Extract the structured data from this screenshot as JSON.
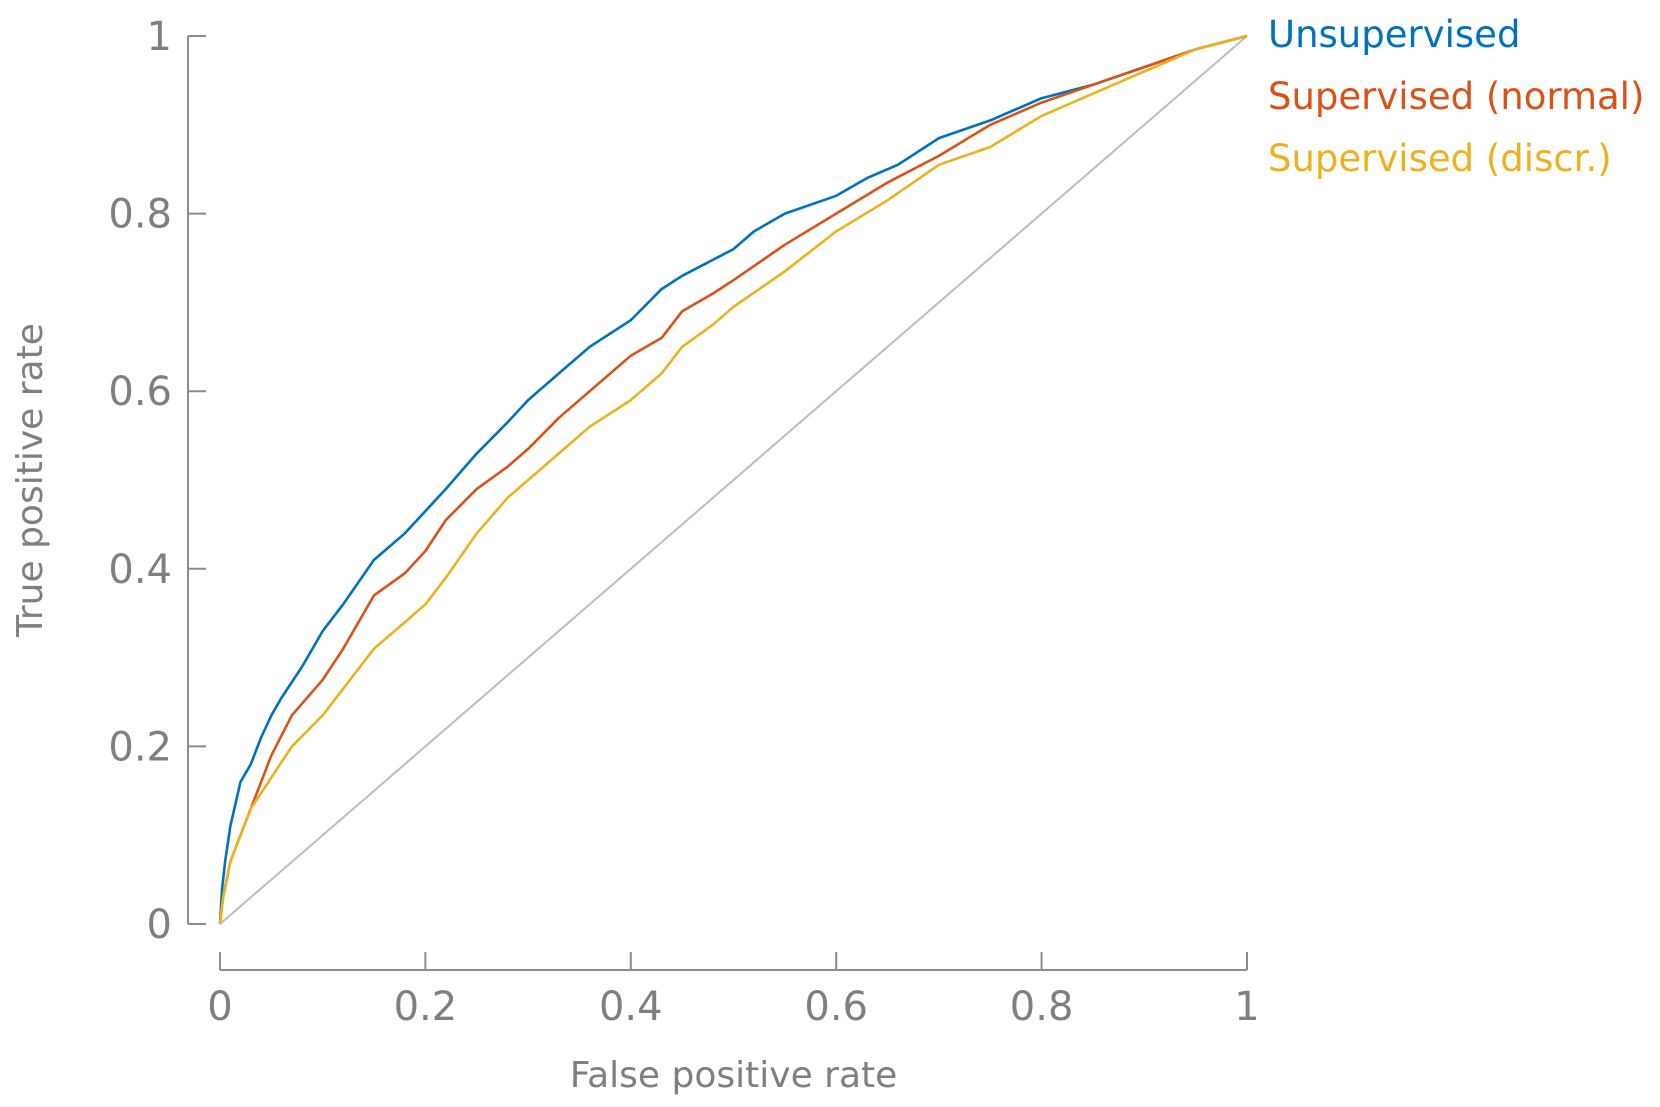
{
  "chart_data": {
    "type": "line",
    "title": "",
    "xlabel": "False positive rate",
    "ylabel": "True positive rate",
    "xlim": [
      0,
      1
    ],
    "ylim": [
      0,
      1
    ],
    "xticks": [
      "0",
      "0.2",
      "0.4",
      "0.6",
      "0.8",
      "1"
    ],
    "yticks": [
      "0",
      "0.2",
      "0.4",
      "0.6",
      "0.8",
      "1"
    ],
    "grid": false,
    "legend_position": "outside-top-right",
    "reference_line": {
      "from": [
        0,
        0
      ],
      "to": [
        1,
        1
      ],
      "color": "#bdbdbd"
    },
    "series": [
      {
        "name": "Unsupervised",
        "color": "#0072BD",
        "x": [
          0,
          0.002,
          0.005,
          0.01,
          0.02,
          0.03,
          0.04,
          0.05,
          0.06,
          0.08,
          0.1,
          0.12,
          0.15,
          0.18,
          0.2,
          0.22,
          0.25,
          0.28,
          0.3,
          0.33,
          0.36,
          0.4,
          0.43,
          0.45,
          0.5,
          0.52,
          0.55,
          0.6,
          0.63,
          0.66,
          0.7,
          0.75,
          0.8,
          0.85,
          0.9,
          0.95,
          1.0
        ],
        "y": [
          0,
          0.04,
          0.07,
          0.11,
          0.16,
          0.18,
          0.21,
          0.235,
          0.255,
          0.29,
          0.33,
          0.36,
          0.41,
          0.44,
          0.465,
          0.49,
          0.53,
          0.565,
          0.59,
          0.62,
          0.65,
          0.68,
          0.715,
          0.73,
          0.76,
          0.78,
          0.8,
          0.82,
          0.84,
          0.855,
          0.885,
          0.905,
          0.93,
          0.945,
          0.965,
          0.985,
          1.0
        ]
      },
      {
        "name": "Supervised (normal)",
        "color": "#D95319",
        "x": [
          0,
          0.003,
          0.01,
          0.02,
          0.03,
          0.05,
          0.07,
          0.1,
          0.12,
          0.15,
          0.18,
          0.2,
          0.22,
          0.25,
          0.28,
          0.3,
          0.33,
          0.36,
          0.4,
          0.43,
          0.45,
          0.48,
          0.5,
          0.55,
          0.6,
          0.65,
          0.7,
          0.75,
          0.8,
          0.85,
          0.9,
          0.95,
          1.0
        ],
        "y": [
          0,
          0.03,
          0.07,
          0.1,
          0.13,
          0.19,
          0.235,
          0.275,
          0.31,
          0.37,
          0.395,
          0.42,
          0.455,
          0.49,
          0.515,
          0.535,
          0.57,
          0.6,
          0.64,
          0.66,
          0.69,
          0.71,
          0.725,
          0.765,
          0.8,
          0.835,
          0.865,
          0.9,
          0.925,
          0.945,
          0.965,
          0.985,
          1.0
        ]
      },
      {
        "name": "Supervised (discr.)",
        "color": "#EDB120",
        "x": [
          0,
          0.003,
          0.01,
          0.02,
          0.03,
          0.05,
          0.07,
          0.1,
          0.12,
          0.15,
          0.18,
          0.2,
          0.22,
          0.25,
          0.28,
          0.3,
          0.33,
          0.36,
          0.4,
          0.43,
          0.45,
          0.48,
          0.5,
          0.55,
          0.6,
          0.65,
          0.7,
          0.75,
          0.8,
          0.85,
          0.9,
          0.95,
          1.0
        ],
        "y": [
          0,
          0.03,
          0.07,
          0.1,
          0.13,
          0.165,
          0.2,
          0.235,
          0.265,
          0.31,
          0.34,
          0.36,
          0.39,
          0.44,
          0.48,
          0.5,
          0.53,
          0.56,
          0.59,
          0.62,
          0.65,
          0.675,
          0.695,
          0.735,
          0.78,
          0.815,
          0.855,
          0.875,
          0.91,
          0.935,
          0.96,
          0.985,
          1.0
        ]
      }
    ]
  }
}
